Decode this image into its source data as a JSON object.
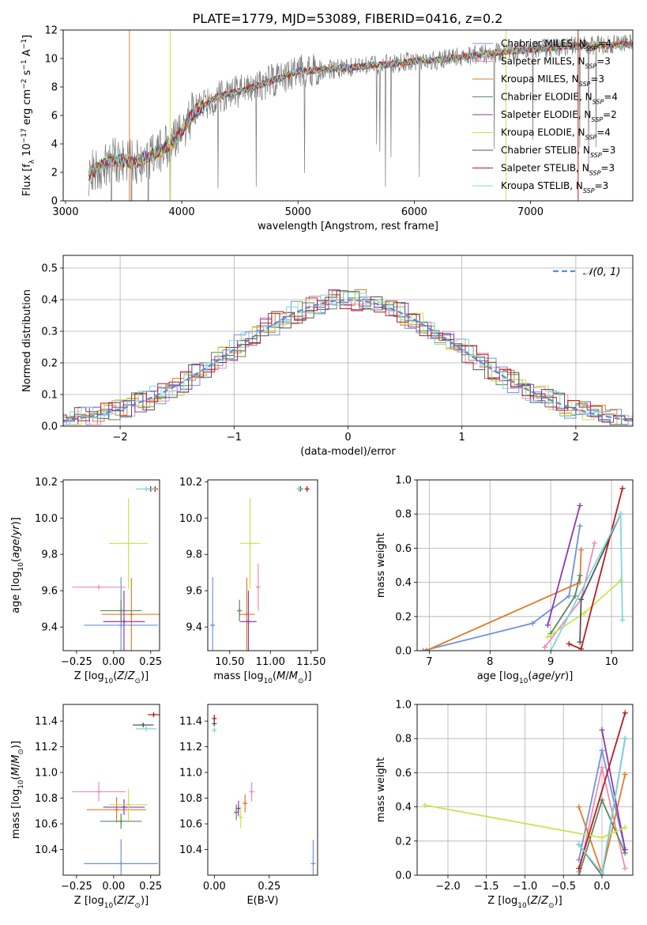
{
  "figure_title": "PLATE=1779, MJD=53089, FIBERID=0416, z=0.2",
  "colors": {
    "Chabrier MILES": "#6f93e0",
    "Salpeter MILES": "#f08ab8",
    "Kroupa MILES": "#e07b2a",
    "Chabrier ELODIE": "#5a8a5e",
    "Salpeter ELODIE": "#8e3aad",
    "Kroupa ELODIE": "#cde34d",
    "Chabrier STELIB": "#555555",
    "Salpeter STELIB": "#b81c1c",
    "Kroupa STELIB": "#7fd6de",
    "gaussian": "#5b8ad8"
  },
  "chart_data": [
    {
      "id": "spectrum",
      "type": "line",
      "xlabel": "wavelength [Angstrom, rest frame]",
      "ylabel": "Flux [f_λ 10^-17 erg cm^-2 s^-1 A^-1]",
      "xlim": [
        2980,
        7880
      ],
      "ylim": [
        0,
        12
      ],
      "xticks": [
        3000,
        4000,
        5000,
        6000,
        7000
      ],
      "yticks": [
        0,
        2,
        4,
        6,
        8,
        10,
        12
      ],
      "legend_position": "top-right",
      "legend": [
        {
          "name": "Chabrier MILES",
          "sub": "SSP",
          "n": "4"
        },
        {
          "name": "Salpeter MILES",
          "sub": "SSP",
          "n": "3"
        },
        {
          "name": "Kroupa MILES",
          "sub": "SSP",
          "n": "3"
        },
        {
          "name": "Chabrier ELODIE",
          "sub": "SSP",
          "n": "4"
        },
        {
          "name": "Salpeter ELODIE",
          "sub": "SSP",
          "n": "2"
        },
        {
          "name": "Kroupa ELODIE",
          "sub": "SSP",
          "n": "4"
        },
        {
          "name": "Chabrier STELIB",
          "sub": "SSP",
          "n": "3"
        },
        {
          "name": "Salpeter STELIB",
          "sub": "SSP",
          "n": "3"
        },
        {
          "name": "Kroupa STELIB",
          "sub": "SSP",
          "n": "3"
        }
      ],
      "model_continuum": {
        "x": [
          3200,
          3400,
          3600,
          3800,
          3950,
          4100,
          4300,
          4500,
          4800,
          5000,
          5200,
          5500,
          5800,
          6000,
          6200,
          6500,
          6800,
          7100,
          7400,
          7880
        ],
        "y": [
          1.9,
          2.9,
          2.7,
          3.4,
          4.3,
          6.2,
          7.3,
          7.7,
          8.5,
          9.1,
          9.2,
          9.4,
          9.6,
          9.8,
          9.9,
          10.2,
          10.5,
          10.7,
          10.9,
          11.0
        ]
      }
    },
    {
      "id": "residuals",
      "type": "line",
      "xlabel": "(data-model)/error",
      "ylabel": "Normed distribution",
      "xlim": [
        -2.5,
        2.5
      ],
      "ylim": [
        0,
        0.54
      ],
      "xticks": [
        -2,
        -1,
        0,
        1,
        2
      ],
      "xtick_labels": [
        "−2",
        "−1",
        "0",
        "1",
        "2"
      ],
      "yticks": [
        0.0,
        0.1,
        0.2,
        0.3,
        0.4,
        0.5
      ],
      "grid": true,
      "legend_position": "top-right",
      "gaussian_label": "𝒩(0, 1)"
    },
    {
      "id": "age_vs_Z",
      "type": "scatter",
      "xlabel": "Z [log10(Z/Z⊙)]",
      "ylabel": "age  [log10(age/yr)]",
      "xlim": [
        -0.34,
        0.31
      ],
      "ylim": [
        9.27,
        10.21
      ],
      "xticks": [
        -0.25,
        0.0,
        0.25
      ],
      "yticks": [
        9.4,
        9.6,
        9.8,
        10.0,
        10.2
      ],
      "points": [
        {
          "s": "Chabrier MILES",
          "x": 0.05,
          "xerr": 0.25,
          "y": 9.41,
          "yerr": 0.53
        },
        {
          "s": "Salpeter MILES",
          "x": -0.1,
          "xerr": 0.18,
          "y": 9.62,
          "yerr": 0.0
        },
        {
          "s": "Kroupa MILES",
          "x": 0.12,
          "xerr": 0.2,
          "y": 9.47,
          "yerr": 0.4
        },
        {
          "s": "Chabrier ELODIE",
          "x": 0.05,
          "xerr": 0.14,
          "y": 9.49,
          "yerr": 0.12
        },
        {
          "s": "Salpeter ELODIE",
          "x": 0.07,
          "xerr": 0.14,
          "y": 9.43,
          "yerr": 0.34
        },
        {
          "s": "Kroupa ELODIE",
          "x": 0.1,
          "xerr": 0.13,
          "y": 9.86,
          "yerr": 0.5
        },
        {
          "s": "Chabrier STELIB",
          "x": 0.25,
          "xerr": 0.02,
          "y": 10.16,
          "yerr": 0.03
        },
        {
          "s": "Salpeter STELIB",
          "x": 0.28,
          "xerr": 0.02,
          "y": 10.16,
          "yerr": 0.03
        },
        {
          "s": "Kroupa STELIB",
          "x": 0.22,
          "xerr": 0.07,
          "y": 10.16,
          "yerr": 0.02
        }
      ]
    },
    {
      "id": "age_vs_mass",
      "type": "scatter",
      "xlabel": "mass [log10(M/M⊙)]",
      "ylabel": "",
      "xlim": [
        10.23,
        11.58
      ],
      "ylim": [
        9.27,
        10.21
      ],
      "xticks": [
        10.5,
        11.0,
        11.5
      ],
      "yticks": [
        9.4,
        9.6,
        9.8,
        10.0,
        10.2
      ],
      "points": [
        {
          "s": "Chabrier MILES",
          "x": 10.29,
          "xerr": 0.0,
          "y": 9.41,
          "yerr": 0.53
        },
        {
          "s": "Salpeter MILES",
          "x": 10.85,
          "xerr": 0.0,
          "y": 9.62,
          "yerr": 0.26
        },
        {
          "s": "Kroupa MILES",
          "x": 10.71,
          "xerr": 0.1,
          "y": 9.47,
          "yerr": 0.4
        },
        {
          "s": "Chabrier ELODIE",
          "x": 10.62,
          "xerr": 0.0,
          "y": 9.49,
          "yerr": 0.12
        },
        {
          "s": "Salpeter ELODIE",
          "x": 10.73,
          "xerr": 0.1,
          "y": 9.43,
          "yerr": 0.34
        },
        {
          "s": "Kroupa ELODIE",
          "x": 10.75,
          "xerr": 0.12,
          "y": 9.86,
          "yerr": 0.5
        },
        {
          "s": "Chabrier STELIB",
          "x": 11.37,
          "xerr": 0.0,
          "y": 10.16,
          "yerr": 0.03
        },
        {
          "s": "Salpeter STELIB",
          "x": 11.45,
          "xerr": 0.0,
          "y": 10.16,
          "yerr": 0.03
        },
        {
          "s": "Kroupa STELIB",
          "x": 11.35,
          "xerr": 0.0,
          "y": 10.16,
          "yerr": 0.02
        }
      ]
    },
    {
      "id": "massweight_vs_age",
      "type": "line",
      "xlabel": "age  [log10(age/yr)]",
      "ylabel": "mass weight",
      "xlim": [
        6.8,
        10.35
      ],
      "ylim": [
        0,
        1
      ],
      "xticks": [
        7,
        8,
        9,
        10
      ],
      "yticks": [
        0.0,
        0.2,
        0.4,
        0.6,
        0.8,
        1.0
      ],
      "grid": true,
      "series": [
        {
          "s": "Chabrier MILES",
          "x": [
            6.9,
            8.7,
            9.3,
            9.48
          ],
          "y": [
            0.0,
            0.16,
            0.32,
            0.73
          ]
        },
        {
          "s": "Salpeter MILES",
          "x": [
            8.9,
            9.5,
            9.72
          ],
          "y": [
            0.02,
            0.3,
            0.63
          ]
        },
        {
          "s": "Kroupa MILES",
          "x": [
            6.95,
            9.48,
            9.5
          ],
          "y": [
            0.0,
            0.4,
            0.59
          ]
        },
        {
          "s": "Chabrier ELODIE",
          "x": [
            9.0,
            9.4,
            9.48
          ],
          "y": [
            0.1,
            0.32,
            0.44
          ]
        },
        {
          "s": "Salpeter ELODIE",
          "x": [
            8.95,
            9.48
          ],
          "y": [
            0.15,
            0.85
          ]
        },
        {
          "s": "Kroupa ELODIE",
          "x": [
            8.95,
            9.55,
            10.15
          ],
          "y": [
            0.08,
            0.22,
            0.41
          ]
        },
        {
          "s": "Chabrier STELIB",
          "x": [
            9.48,
            9.5,
            10.15
          ],
          "y": [
            0.05,
            0.3,
            0.8
          ]
        },
        {
          "s": "Salpeter STELIB",
          "x": [
            9.3,
            9.5,
            10.18
          ],
          "y": [
            0.04,
            0.01,
            0.95
          ]
        },
        {
          "s": "Kroupa STELIB",
          "x": [
            9.0,
            10.15,
            10.18
          ],
          "y": [
            0.0,
            0.8,
            0.18
          ]
        }
      ]
    },
    {
      "id": "mass_vs_Z",
      "type": "scatter",
      "xlabel": "Z [log10(Z/Z⊙)]",
      "ylabel": "mass [log10(M/M⊙)]",
      "xlim": [
        -0.34,
        0.31
      ],
      "ylim": [
        10.2,
        11.53
      ],
      "xticks": [
        -0.25,
        0.0,
        0.25
      ],
      "yticks": [
        10.4,
        10.6,
        10.8,
        11.0,
        11.2,
        11.4
      ],
      "points": [
        {
          "s": "Chabrier MILES",
          "x": 0.05,
          "xerr": 0.25,
          "y": 10.29,
          "yerr": 0.38
        },
        {
          "s": "Salpeter MILES",
          "x": -0.1,
          "xerr": 0.18,
          "y": 10.85,
          "yerr": 0.15
        },
        {
          "s": "Kroupa MILES",
          "x": 0.02,
          "xerr": 0.2,
          "y": 10.71,
          "yerr": 0.2
        },
        {
          "s": "Chabrier ELODIE",
          "x": 0.05,
          "xerr": 0.14,
          "y": 10.62,
          "yerr": 0.12
        },
        {
          "s": "Salpeter ELODIE",
          "x": 0.07,
          "xerr": 0.14,
          "y": 10.73,
          "yerr": 0.12
        },
        {
          "s": "Kroupa ELODIE",
          "x": 0.1,
          "xerr": 0.13,
          "y": 10.75,
          "yerr": 0.25
        },
        {
          "s": "Chabrier STELIB",
          "x": 0.2,
          "xerr": 0.07,
          "y": 11.37,
          "yerr": 0.03
        },
        {
          "s": "Salpeter STELIB",
          "x": 0.27,
          "xerr": 0.04,
          "y": 11.45,
          "yerr": 0.03
        },
        {
          "s": "Kroupa STELIB",
          "x": 0.22,
          "xerr": 0.07,
          "y": 11.34,
          "yerr": 0.03
        }
      ]
    },
    {
      "id": "mass_vs_EBV",
      "type": "scatter",
      "xlabel": "E(B-V)",
      "ylabel": "",
      "xlim": [
        -0.03,
        0.47
      ],
      "ylim": [
        10.2,
        11.53
      ],
      "xticks": [
        0.0,
        0.25
      ],
      "xtick_labels": [
        "0.00",
        "0.25"
      ],
      "yticks": [
        10.4,
        10.6,
        10.8,
        11.0,
        11.2,
        11.4
      ],
      "points": [
        {
          "s": "Chabrier MILES",
          "x": 0.45,
          "y": 10.29,
          "yerr": 0.37
        },
        {
          "s": "Salpeter MILES",
          "x": 0.17,
          "y": 10.85,
          "yerr": 0.15
        },
        {
          "s": "Kroupa MILES",
          "x": 0.14,
          "y": 10.76,
          "yerr": 0.14
        },
        {
          "s": "Chabrier ELODIE",
          "x": 0.1,
          "y": 10.69,
          "yerr": 0.12
        },
        {
          "s": "Salpeter ELODIE",
          "x": 0.11,
          "y": 10.72,
          "yerr": 0.12
        },
        {
          "s": "Kroupa ELODIE",
          "x": 0.12,
          "y": 10.65,
          "yerr": 0.17
        },
        {
          "s": "Chabrier STELIB",
          "x": 0.0,
          "y": 11.38,
          "yerr": 0.04
        },
        {
          "s": "Salpeter STELIB",
          "x": 0.0,
          "y": 11.42,
          "yerr": 0.06
        },
        {
          "s": "Kroupa STELIB",
          "x": 0.0,
          "y": 11.33,
          "yerr": 0.04
        }
      ]
    },
    {
      "id": "massweight_vs_Z",
      "type": "line",
      "xlabel": "Z [log10(Z/Z⊙)]",
      "ylabel": "mass weight",
      "xlim": [
        -2.4,
        0.4
      ],
      "ylim": [
        0,
        1
      ],
      "xticks": [
        -2.0,
        -1.5,
        -1.0,
        -0.5,
        0.0
      ],
      "xtick_labels": [
        "−2.0",
        "−1.5",
        "−1.0",
        "−0.5",
        "0.0"
      ],
      "yticks": [
        0.0,
        0.2,
        0.4,
        0.6,
        0.8,
        1.0
      ],
      "grid": true,
      "series": [
        {
          "s": "Chabrier MILES",
          "x": [
            -0.3,
            0.0,
            0.3
          ],
          "y": [
            0.09,
            0.73,
            0.15
          ]
        },
        {
          "s": "Salpeter MILES",
          "x": [
            -0.3,
            0.0,
            0.3
          ],
          "y": [
            0.02,
            0.63,
            0.04
          ]
        },
        {
          "s": "Kroupa MILES",
          "x": [
            -0.3,
            0.0,
            0.3
          ],
          "y": [
            0.4,
            0.01,
            0.59
          ]
        },
        {
          "s": "Chabrier ELODIE",
          "x": [
            -0.3,
            0.0,
            0.3
          ],
          "y": [
            0.0,
            0.44,
            0.13
          ]
        },
        {
          "s": "Salpeter ELODIE",
          "x": [
            0.0,
            0.3
          ],
          "y": [
            0.85,
            0.15
          ]
        },
        {
          "s": "Kroupa ELODIE",
          "x": [
            -2.3,
            0.0,
            0.3
          ],
          "y": [
            0.41,
            0.22,
            0.28
          ]
        },
        {
          "s": "Chabrier STELIB",
          "x": [
            -0.3,
            0.0,
            0.3
          ],
          "y": [
            0.18,
            0.0,
            0.8
          ]
        },
        {
          "s": "Salpeter STELIB",
          "x": [
            -0.3,
            0.3
          ],
          "y": [
            0.04,
            0.95
          ]
        },
        {
          "s": "Kroupa STELIB",
          "x": [
            -0.3,
            0.0,
            0.3
          ],
          "y": [
            0.18,
            0.01,
            0.8
          ]
        }
      ]
    }
  ]
}
